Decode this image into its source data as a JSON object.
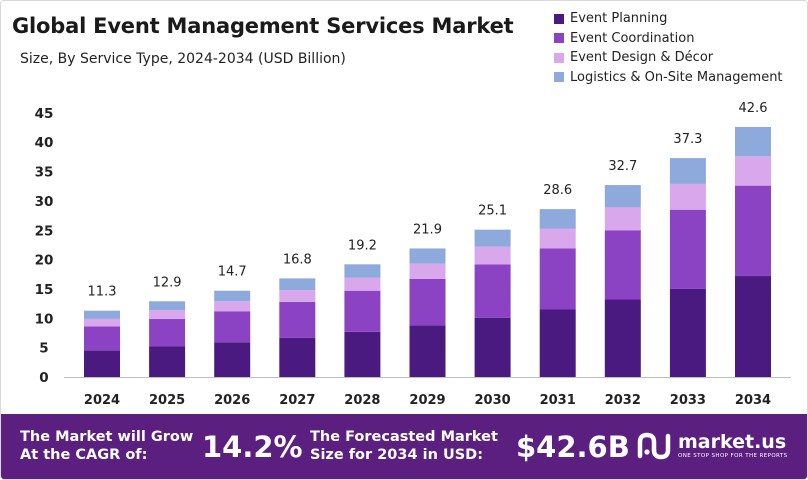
{
  "header": {
    "title": "Global Event Management Services Market",
    "subtitle": "Size, By Service Type, 2024-2034 (USD Billion)"
  },
  "chart_data": {
    "type": "bar",
    "stacked": true,
    "categories": [
      "2024",
      "2025",
      "2026",
      "2027",
      "2028",
      "2029",
      "2030",
      "2031",
      "2032",
      "2033",
      "2034"
    ],
    "totals": [
      11.3,
      12.9,
      14.7,
      16.8,
      19.2,
      21.9,
      25.1,
      28.6,
      32.7,
      37.3,
      42.6
    ],
    "total_labels": [
      "11.3",
      "12.9",
      "14.7",
      "16.8",
      "19.2",
      "21.9",
      "25.1",
      "28.6",
      "32.7",
      "37.3",
      "42.6"
    ],
    "series": [
      {
        "name": "Event Planning",
        "color": "#4b1a80",
        "values": [
          4.5,
          5.2,
          5.9,
          6.7,
          7.7,
          8.8,
          10.1,
          11.5,
          13.2,
          15.0,
          17.2
        ]
      },
      {
        "name": "Event Coordination",
        "color": "#8b43c4",
        "values": [
          4.1,
          4.7,
          5.3,
          6.1,
          7.0,
          7.9,
          9.1,
          10.4,
          11.8,
          13.5,
          15.4
        ]
      },
      {
        "name": "Event Design & Décor",
        "color": "#d9a8ec",
        "values": [
          1.3,
          1.5,
          1.7,
          2.0,
          2.2,
          2.6,
          3.0,
          3.4,
          3.9,
          4.4,
          5.0
        ]
      },
      {
        "name": "Logistics & On-Site Management",
        "color": "#8ea9db",
        "values": [
          1.4,
          1.5,
          1.8,
          2.0,
          2.3,
          2.6,
          2.9,
          3.3,
          3.8,
          4.4,
          5.0
        ]
      }
    ],
    "yticks": [
      "0",
      "5",
      "10",
      "15",
      "20",
      "25",
      "30",
      "35",
      "40",
      "45"
    ],
    "ylim": [
      0,
      45
    ],
    "xlabel": "",
    "ylabel": "",
    "legend_position": "top-right",
    "grid": false
  },
  "footer": {
    "cagr_label_line1": "The Market will Grow",
    "cagr_label_line2": "At the CAGR of:",
    "cagr_value": "14.2%",
    "forecast_label_line1": "The Forecasted Market",
    "forecast_label_line2": "Size for 2034 in USD:",
    "forecast_value": "$42.6B",
    "brand_name": "market.us",
    "brand_tagline": "ONE STOP SHOP FOR THE REPORTS"
  },
  "colors": {
    "footer_background": "#5b1f80",
    "axis": "#bfbfbf"
  }
}
